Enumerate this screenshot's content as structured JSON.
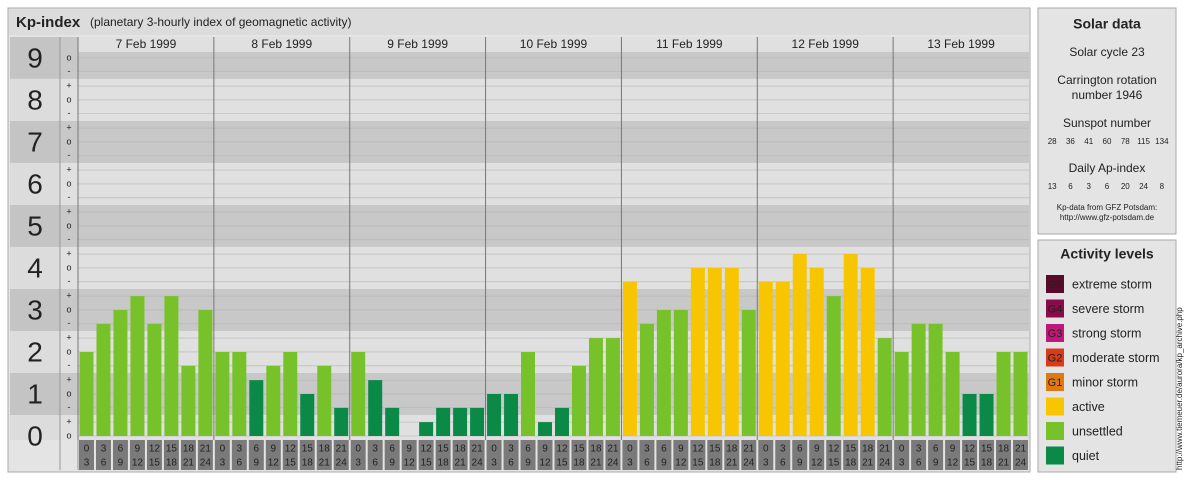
{
  "header": {
    "title": "Kp-index",
    "subtitle": "(planetary 3-hourly index of geomagnetic activity)"
  },
  "chart_data": {
    "type": "bar",
    "days": [
      "7 Feb 1999",
      "8 Feb 1999",
      "9 Feb 1999",
      "10 Feb 1999",
      "11 Feb 1999",
      "12 Feb 1999",
      "13 Feb 1999"
    ],
    "hours": [
      [
        "0",
        "3"
      ],
      [
        "3",
        "6"
      ],
      [
        "6",
        "9"
      ],
      [
        "9",
        "12"
      ],
      [
        "12",
        "15"
      ],
      [
        "15",
        "18"
      ],
      [
        "18",
        "21"
      ],
      [
        "21",
        "24"
      ]
    ],
    "values": [
      2,
      2.67,
      3,
      3.33,
      2.67,
      3.33,
      1.67,
      3,
      2,
      2,
      1.33,
      1.67,
      2,
      1,
      1.67,
      0.67,
      2,
      1.33,
      0.67,
      0,
      0.33,
      0.67,
      0.67,
      0.67,
      1,
      1,
      2,
      0.33,
      0.67,
      1.67,
      2.33,
      2.33,
      3.67,
      2.67,
      3,
      3,
      4,
      4,
      4,
      3,
      3.67,
      3.67,
      4.33,
      4,
      3.33,
      4.33,
      4,
      2.33,
      2,
      2.67,
      2.67,
      2,
      1,
      1,
      2,
      2
    ],
    "colors": [
      "#77c22a",
      "#77c22a",
      "#77c22a",
      "#77c22a",
      "#77c22a",
      "#77c22a",
      "#77c22a",
      "#77c22a",
      "#77c22a",
      "#77c22a",
      "#0b8a47",
      "#77c22a",
      "#77c22a",
      "#0b8a47",
      "#77c22a",
      "#0b8a47",
      "#77c22a",
      "#0b8a47",
      "#0b8a47",
      "#0b8a47",
      "#0b8a47",
      "#0b8a47",
      "#0b8a47",
      "#0b8a47",
      "#0b8a47",
      "#0b8a47",
      "#77c22a",
      "#0b8a47",
      "#0b8a47",
      "#77c22a",
      "#77c22a",
      "#77c22a",
      "#f7c600",
      "#77c22a",
      "#77c22a",
      "#77c22a",
      "#f7c600",
      "#f7c600",
      "#f7c600",
      "#77c22a",
      "#f7c600",
      "#f7c600",
      "#f7c600",
      "#f7c600",
      "#77c22a",
      "#f7c600",
      "#f7c600",
      "#77c22a",
      "#77c22a",
      "#77c22a",
      "#77c22a",
      "#77c22a",
      "#0b8a47",
      "#0b8a47",
      "#77c22a",
      "#77c22a"
    ],
    "ylim": [
      0,
      9.14
    ],
    "yticks": [
      0,
      1,
      2,
      3,
      4,
      5,
      6,
      7,
      8,
      9
    ],
    "minor_ticks": [
      {
        "value": 0,
        "label": "o"
      },
      {
        "value": 0.33,
        "label": "+"
      },
      {
        "value": 0.67,
        "label": "-"
      },
      {
        "value": 1,
        "label": "o"
      },
      {
        "value": 1.33,
        "label": "+"
      },
      {
        "value": 1.67,
        "label": "-"
      },
      {
        "value": 2,
        "label": "o"
      },
      {
        "value": 2.33,
        "label": "+"
      },
      {
        "value": 2.67,
        "label": "-"
      },
      {
        "value": 3,
        "label": "o"
      },
      {
        "value": 3.33,
        "label": "+"
      },
      {
        "value": 3.67,
        "label": "-"
      },
      {
        "value": 4,
        "label": "o"
      },
      {
        "value": 4.33,
        "label": "+"
      },
      {
        "value": 4.67,
        "label": "-"
      },
      {
        "value": 5,
        "label": "o"
      },
      {
        "value": 5.33,
        "label": "+"
      },
      {
        "value": 5.67,
        "label": "-"
      },
      {
        "value": 6,
        "label": "o"
      },
      {
        "value": 6.33,
        "label": "+"
      },
      {
        "value": 6.67,
        "label": "-"
      },
      {
        "value": 7,
        "label": "o"
      },
      {
        "value": 7.33,
        "label": "+"
      },
      {
        "value": 7.67,
        "label": "-"
      },
      {
        "value": 8,
        "label": "o"
      },
      {
        "value": 8.33,
        "label": "+"
      },
      {
        "value": 8.67,
        "label": "-"
      },
      {
        "value": 9,
        "label": "o"
      }
    ],
    "grid": true
  },
  "solar_data": {
    "title": "Solar data",
    "cycle": "Solar cycle 23",
    "carrington": [
      "Carrington rotation",
      "number 1946"
    ],
    "sunspot_label": "Sunspot number",
    "sunspot": [
      28,
      36,
      41,
      60,
      78,
      115,
      134
    ],
    "ap_label": "Daily Ap-index",
    "ap": [
      13,
      6,
      3,
      6,
      20,
      24,
      8
    ],
    "source": [
      "Kp-data from GFZ Potsdam:",
      "http://www.gfz-potsdam.de"
    ]
  },
  "activity_levels": {
    "title": "Activity levels",
    "items": [
      {
        "badge": "G5",
        "label": "extreme storm",
        "color": "#5a0a2a"
      },
      {
        "badge": "G4",
        "label": "severe storm",
        "color": "#8a0a4a"
      },
      {
        "badge": "G3",
        "label": "strong storm",
        "color": "#c0187a"
      },
      {
        "badge": "G2",
        "label": "moderate storm",
        "color": "#d83a1a"
      },
      {
        "badge": "G1",
        "label": "minor storm",
        "color": "#e07a10"
      },
      {
        "label": "active",
        "color": "#f7c600"
      },
      {
        "label": "unsettled",
        "color": "#77c22a"
      },
      {
        "label": "quiet",
        "color": "#0b8a47"
      }
    ]
  },
  "credit": "http://www.tiemeuer.de/aurora/kp_archive.php"
}
